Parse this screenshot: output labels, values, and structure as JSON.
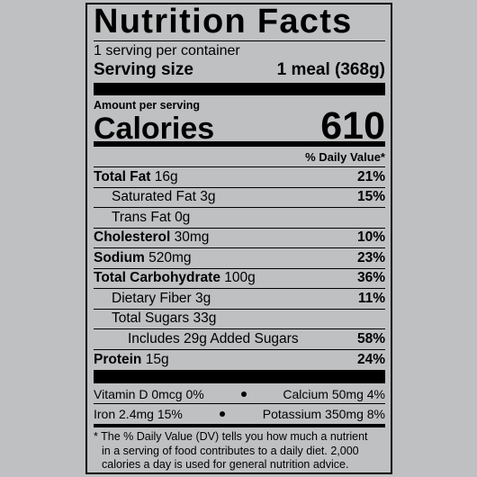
{
  "title": "Nutrition Facts",
  "servings": "1 serving per container",
  "serving_size": {
    "label": "Serving size",
    "value": "1 meal (368g)"
  },
  "amount_per_serving": "Amount per serving",
  "calories": {
    "label": "Calories",
    "value": "610"
  },
  "daily_value_header": "% Daily Value*",
  "nutrients": [
    {
      "name": "Total Fat",
      "amount": "16g",
      "dv": "21%"
    },
    {
      "name": "Saturated Fat",
      "amount": "3g",
      "dv": "15%"
    },
    {
      "name": "Trans Fat",
      "amount": "0g"
    },
    {
      "name": "Cholesterol",
      "amount": "30mg",
      "dv": "10%"
    },
    {
      "name": "Sodium",
      "amount": "520mg",
      "dv": "23%"
    },
    {
      "name": "Total Carbohydrate",
      "amount": "100g",
      "dv": "36%"
    },
    {
      "name": "Dietary Fiber",
      "amount": "3g",
      "dv": "11%"
    },
    {
      "name": "Total Sugars",
      "amount": "33g"
    },
    {
      "name": "Includes 29g Added Sugars",
      "dv": "58%"
    },
    {
      "name": "Protein",
      "amount": "15g",
      "dv": "24%"
    }
  ],
  "vitamins": [
    [
      {
        "name": "Vitamin D",
        "amount": "0mcg",
        "dv": "0%"
      },
      {
        "name": "Calcium",
        "amount": "50mg",
        "dv": "4%"
      }
    ],
    [
      {
        "name": "Iron",
        "amount": "2.4mg",
        "dv": "15%"
      },
      {
        "name": "Potassium",
        "amount": "350mg",
        "dv": "8%"
      }
    ]
  ],
  "footnote": [
    "* The % Daily Value (DV) tells you how much a nutrient",
    "in a serving of food contributes to a daily diet. 2,000",
    "calories a day is used for general nutrition advice."
  ]
}
